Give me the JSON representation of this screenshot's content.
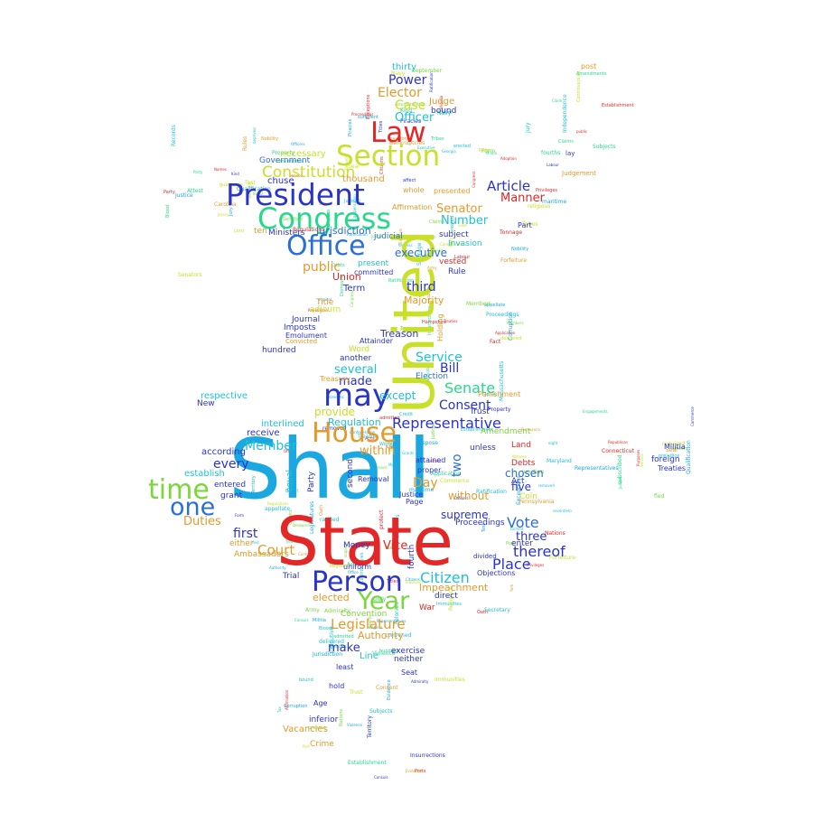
{
  "palette": [
    "#1ba7e0",
    "#e32626",
    "#c9e02a",
    "#2a34c9",
    "#27d88a",
    "#e39a2a",
    "#1ec1d6",
    "#7ad63a"
  ],
  "words": [
    {
      "text": "Shall",
      "color": "#1ba7e0"
    },
    {
      "text": "State",
      "color": "#e32626"
    },
    {
      "text": "United",
      "color": "#c9e02a"
    },
    {
      "text": "President",
      "color": "#2a34c9"
    },
    {
      "text": "Congress",
      "color": "#27d88a"
    },
    {
      "text": "Office",
      "color": "#2a6fd6"
    },
    {
      "text": "House",
      "color": "#e39a2a"
    },
    {
      "text": "Person",
      "color": "#2a34c9"
    },
    {
      "text": "may",
      "color": "#2a34c9"
    },
    {
      "text": "Section",
      "color": "#c9e02a"
    },
    {
      "text": "Law",
      "color": "#e32626"
    },
    {
      "text": "time",
      "color": "#7ad63a"
    },
    {
      "text": "one",
      "color": "#2a6fd6"
    },
    {
      "text": "Year",
      "color": "#7ad63a"
    },
    {
      "text": "Representative",
      "color": "#2a34c9"
    },
    {
      "text": "Constitution",
      "color": "#c9e02a"
    },
    {
      "text": "Senate",
      "color": "#27d88a"
    },
    {
      "text": "Citizen",
      "color": "#1ec1d6"
    },
    {
      "text": "Vote",
      "color": "#2a6fd6"
    },
    {
      "text": "Article",
      "color": "#2a34c9"
    },
    {
      "text": "thereof",
      "color": "#2a34c9"
    },
    {
      "text": "Court",
      "color": "#e39a2a"
    },
    {
      "text": "Place",
      "color": "#2a34c9"
    },
    {
      "text": "Member",
      "color": "#1ec1d6"
    },
    {
      "text": "Consent",
      "color": "#2a34c9"
    },
    {
      "text": "Legislature",
      "color": "#e39a2a"
    },
    {
      "text": "Power",
      "color": "#2a34c9"
    },
    {
      "text": "Elector",
      "color": "#e39a2a"
    },
    {
      "text": "Case",
      "color": "#c9e02a"
    },
    {
      "text": "Officer",
      "color": "#1ec1d6"
    },
    {
      "text": "Number",
      "color": "#1ec1d6"
    },
    {
      "text": "Senator",
      "color": "#e39a2a"
    },
    {
      "text": "third",
      "color": "#2a34c9"
    },
    {
      "text": "public",
      "color": "#e39a2a"
    },
    {
      "text": "executive",
      "color": "#2a6fd6"
    },
    {
      "text": "Service",
      "color": "#1ec1d6"
    },
    {
      "text": "Bill",
      "color": "#2a34c9"
    },
    {
      "text": "several",
      "color": "#1ec1d6"
    },
    {
      "text": "made",
      "color": "#2a34c9"
    },
    {
      "text": "except",
      "color": "#1ec1d6"
    },
    {
      "text": "provide",
      "color": "#c9e02a"
    },
    {
      "text": "first",
      "color": "#2a34c9"
    },
    {
      "text": "every",
      "color": "#2a34c9"
    },
    {
      "text": "Duties",
      "color": "#e39a2a"
    },
    {
      "text": "within",
      "color": "#e39a2a"
    },
    {
      "text": "Day",
      "color": "#e39a2a"
    },
    {
      "text": "two",
      "color": "#2a6fd6"
    },
    {
      "text": "without",
      "color": "#e39a2a"
    },
    {
      "text": "supreme",
      "color": "#2a34c9"
    },
    {
      "text": "three",
      "color": "#2a34c9"
    },
    {
      "text": "five",
      "color": "#2a34c9"
    },
    {
      "text": "chosen",
      "color": "#2a6fd6"
    },
    {
      "text": "Vice",
      "color": "#e32626"
    },
    {
      "text": "Manner",
      "color": "#e32626"
    },
    {
      "text": "Treason",
      "color": "#2a34c9"
    },
    {
      "text": "Majority",
      "color": "#e39a2a"
    },
    {
      "text": "Union",
      "color": "#e32626"
    },
    {
      "text": "Term",
      "color": "#2a34c9"
    },
    {
      "text": "Regulation",
      "color": "#1ec1d6"
    },
    {
      "text": "make",
      "color": "#2a34c9"
    },
    {
      "text": "Authority",
      "color": "#e39a2a"
    },
    {
      "text": "elected",
      "color": "#e39a2a"
    },
    {
      "text": "Impeachment",
      "color": "#e39a2a"
    },
    {
      "text": "Convention",
      "color": "#7ad63a"
    },
    {
      "text": "Line",
      "color": "#1ec1d6"
    },
    {
      "text": "thirty",
      "color": "#1ec1d6"
    },
    {
      "text": "Judge",
      "color": "#e39a2a"
    },
    {
      "text": "bound",
      "color": "#2a34c9"
    },
    {
      "text": "necessary",
      "color": "#c9e02a"
    },
    {
      "text": "chuse",
      "color": "#2a34c9"
    },
    {
      "text": "thousand",
      "color": "#e39a2a"
    },
    {
      "text": "Government",
      "color": "#2a6fd6"
    },
    {
      "text": "Jurisdiction",
      "color": "#2a6fd6"
    },
    {
      "text": "Ministers",
      "color": "#2a34c9"
    },
    {
      "text": "judicial",
      "color": "#2a6fd6"
    },
    {
      "text": "subject",
      "color": "#2a34c9"
    },
    {
      "text": "vested",
      "color": "#e32626"
    },
    {
      "text": "Rule",
      "color": "#2a34c9"
    },
    {
      "text": "Invasion",
      "color": "#1ec1d6"
    },
    {
      "text": "present",
      "color": "#1ec1d6"
    },
    {
      "text": "Title",
      "color": "#e39a2a"
    },
    {
      "text": "adjourn",
      "color": "#c9e02a"
    },
    {
      "text": "Imposts",
      "color": "#2a34c9"
    },
    {
      "text": "Journal",
      "color": "#2a34c9"
    },
    {
      "text": "hundred",
      "color": "#2a34c9"
    },
    {
      "text": "Attainder",
      "color": "#2a34c9"
    },
    {
      "text": "Word",
      "color": "#c9e02a"
    },
    {
      "text": "another",
      "color": "#2a34c9"
    },
    {
      "text": "Treasury",
      "color": "#e39a2a"
    },
    {
      "text": "Election",
      "color": "#2a6fd6"
    },
    {
      "text": "Trust",
      "color": "#2a34c9"
    },
    {
      "text": "respective",
      "color": "#1ec1d6"
    },
    {
      "text": "New",
      "color": "#2a34c9"
    },
    {
      "text": "interlined",
      "color": "#1ec1d6"
    },
    {
      "text": "receive",
      "color": "#2a34c9"
    },
    {
      "text": "according",
      "color": "#2a34c9"
    },
    {
      "text": "establish",
      "color": "#1ec1d6"
    },
    {
      "text": "entered",
      "color": "#2a34c9"
    },
    {
      "text": "grant",
      "color": "#2a34c9"
    },
    {
      "text": "either",
      "color": "#e39a2a"
    },
    {
      "text": "Ambassadors",
      "color": "#e39a2a"
    },
    {
      "text": "Money",
      "color": "#2a34c9"
    },
    {
      "text": "Proceedings",
      "color": "#2a34c9"
    },
    {
      "text": "enter",
      "color": "#2a34c9"
    },
    {
      "text": "Coin",
      "color": "#c9e02a"
    },
    {
      "text": "Act",
      "color": "#2a34c9"
    },
    {
      "text": "Land",
      "color": "#e32626"
    },
    {
      "text": "Debts",
      "color": "#e32626"
    },
    {
      "text": "Amendment",
      "color": "#7ad63a"
    },
    {
      "text": "unless",
      "color": "#2a34c9"
    },
    {
      "text": "Trial",
      "color": "#2a34c9"
    },
    {
      "text": "direct",
      "color": "#2a34c9"
    },
    {
      "text": "War",
      "color": "#e32626"
    },
    {
      "text": "exercise",
      "color": "#2a34c9"
    },
    {
      "text": "neither",
      "color": "#2a34c9"
    },
    {
      "text": "least",
      "color": "#2a34c9"
    },
    {
      "text": "hold",
      "color": "#2a34c9"
    },
    {
      "text": "Seat",
      "color": "#2a34c9"
    },
    {
      "text": "inferior",
      "color": "#2a34c9"
    },
    {
      "text": "Vacancies",
      "color": "#e39a2a"
    },
    {
      "text": "Crime",
      "color": "#e39a2a"
    },
    {
      "text": "Age",
      "color": "#2a34c9"
    },
    {
      "text": "foreign",
      "color": "#2a34c9"
    },
    {
      "text": "Treaties",
      "color": "#2a34c9"
    },
    {
      "text": "Militia",
      "color": "#2a34c9"
    },
    {
      "text": "post",
      "color": "#e39a2a"
    },
    {
      "text": "lay",
      "color": "#2a34c9"
    },
    {
      "text": "Judgement",
      "color": "#e39a2a"
    },
    {
      "text": "Part",
      "color": "#2a34c9"
    },
    {
      "text": "fourth",
      "color": "#2a34c9"
    },
    {
      "text": "second",
      "color": "#2a34c9"
    },
    {
      "text": "Holding",
      "color": "#e39a2a"
    },
    {
      "text": "Removal",
      "color": "#2a34c9"
    },
    {
      "text": "Justice",
      "color": "#2a34c9"
    },
    {
      "text": "equal",
      "color": "#1ec1d6"
    },
    {
      "text": "Party",
      "color": "#2a34c9"
    },
    {
      "text": "Punishment",
      "color": "#e39a2a"
    },
    {
      "text": "Affirmation",
      "color": "#e39a2a"
    },
    {
      "text": "committed",
      "color": "#2a34c9"
    },
    {
      "text": "presented",
      "color": "#e39a2a"
    },
    {
      "text": "whole",
      "color": "#e39a2a"
    },
    {
      "text": "ten",
      "color": "#e39a2a"
    },
    {
      "text": "Emolument",
      "color": "#2a34c9"
    },
    {
      "text": "Convicted",
      "color": "#e39a2a"
    },
    {
      "text": "Page",
      "color": "#2a34c9"
    },
    {
      "text": "attained",
      "color": "#2a34c9"
    },
    {
      "text": "proper",
      "color": "#2a34c9"
    },
    {
      "text": "uniform",
      "color": "#2a34c9"
    },
    {
      "text": "Objections",
      "color": "#2a34c9"
    },
    {
      "text": "divided",
      "color": "#2a34c9"
    }
  ],
  "small_words": [
    "Letters",
    "Navy",
    "Militia",
    "Treaties",
    "Oath",
    "Office",
    "Congress",
    "Ballot",
    "Jury",
    "Tax",
    "Credit",
    "Tribunals",
    "Army",
    "Witness",
    "Port",
    "Piracies",
    "Felonies",
    "Nations",
    "Ratification",
    "Compensation",
    "Titles",
    "Nobility",
    "Tonnage",
    "Bankruptcies",
    "Insurrections",
    "Seal",
    "Kind",
    "Duty",
    "Ports",
    "Vessels",
    "Commerce",
    "Tribes",
    "Fact",
    "Evidence",
    "Acts",
    "Records",
    "Labour",
    "Claims",
    "Territory",
    "Property",
    "Republican",
    "Form",
    "Domestic",
    "Violence",
    "Application",
    "Ratification",
    "Establishment",
    "Religious",
    "Test",
    "Qualification",
    "Senators",
    "Representatives",
    "Members",
    "Officers",
    "Judicial",
    "Proceedings",
    "Treaties",
    "Consuls",
    "Admiralty",
    "maritime",
    "Controversies",
    "Citizens",
    "Grants",
    "Subjects",
    "original",
    "appellate",
    "Exceptions",
    "Regulations",
    "Corruption",
    "Blood",
    "Forfeiture",
    "Privileges",
    "Immunities",
    "fled",
    "Justice",
    "Executive",
    "Authority",
    "delivered",
    "removed",
    "Jurisdiction",
    "Service",
    "Labour",
    "Party",
    "Claim",
    "admitted",
    "erected",
    "formed",
    "Junction",
    "Consent",
    "Legislatures",
    "dispose",
    "Rules",
    "Regulations",
    "prejudice",
    "guarantee",
    "protect",
    "Invasion",
    "convened",
    "propose",
    "Amendments",
    "Purposes",
    "ratified",
    "fourths",
    "Mode",
    "eight",
    "hundred",
    "affect",
    "deprived",
    "Suffrage",
    "Debts",
    "Engagements",
    "valid",
    "Adoption",
    "Confederation",
    "Laws",
    "Pursuance",
    "Judges",
    "Contrary",
    "notwithstanding",
    "Senators",
    "bound",
    "Oath",
    "Affirmation",
    "support",
    "religious",
    "required",
    "Qualification",
    "public",
    "Trust",
    "Conventions",
    "sufficient",
    "Establishment",
    "Day",
    "September",
    "Lord",
    "seventeen",
    "Independence",
    "twelfth",
    "Witness",
    "subscribed",
    "Names",
    "Attest",
    "Secretary",
    "Delaware",
    "Maryland",
    "Virginia",
    "Carolina",
    "Georgia",
    "Hampshire",
    "Massachusetts",
    "Connecticut",
    "York",
    "Jersey",
    "Pennsylvania"
  ]
}
